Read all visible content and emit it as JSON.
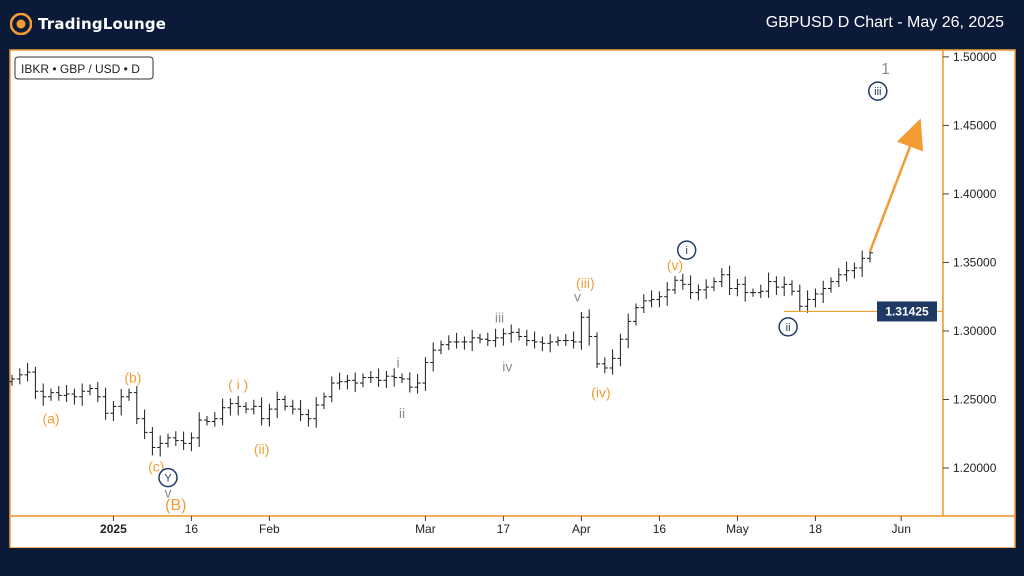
{
  "header": {
    "brand": "TradingLounge",
    "title": "GBPUSD D Chart - May 26, 2025"
  },
  "colors": {
    "background": "#0c1a3a",
    "frame": "#f39c34",
    "orange": "#f39c34",
    "navy": "#1f3864",
    "gray": "#8c8c8c",
    "bars": "#1a1a1a"
  },
  "chart_data": {
    "type": "ohlc",
    "symbol_label": "IBKR • GBP / USD • D",
    "ylim": [
      1.165,
      1.505
    ],
    "y_ticks": [
      1.2,
      1.25,
      1.3,
      1.35,
      1.4,
      1.45,
      1.5
    ],
    "y_tick_labels": [
      "1.20000",
      "1.25000",
      "1.30000",
      "1.35000",
      "1.40000",
      "1.45000",
      "1.50000"
    ],
    "x_ticks": [
      {
        "label": "2025",
        "index": 13,
        "bold": true
      },
      {
        "label": "16",
        "index": 23
      },
      {
        "label": "Feb",
        "index": 33
      },
      {
        "label": "Mar",
        "index": 53
      },
      {
        "label": "17",
        "index": 63
      },
      {
        "label": "Apr",
        "index": 73
      },
      {
        "label": "16",
        "index": 83
      },
      {
        "label": "May",
        "index": 93
      },
      {
        "label": "18",
        "index": 103
      },
      {
        "label": "Jun",
        "index": 114
      }
    ],
    "closes": [
      1.265,
      1.268,
      1.27,
      1.256,
      1.252,
      1.255,
      1.253,
      1.254,
      1.252,
      1.256,
      1.258,
      1.252,
      1.24,
      1.245,
      1.252,
      1.255,
      1.236,
      1.226,
      1.215,
      1.218,
      1.222,
      1.22,
      1.218,
      1.222,
      1.235,
      1.234,
      1.236,
      1.244,
      1.247,
      1.245,
      1.243,
      1.245,
      1.236,
      1.243,
      1.25,
      1.245,
      1.243,
      1.239,
      1.236,
      1.246,
      1.252,
      1.262,
      1.263,
      1.264,
      1.262,
      1.266,
      1.266,
      1.264,
      1.267,
      1.266,
      1.265,
      1.259,
      1.262,
      1.277,
      1.286,
      1.29,
      1.292,
      1.292,
      1.292,
      1.295,
      1.294,
      1.293,
      1.295,
      1.298,
      1.299,
      1.296,
      1.293,
      1.292,
      1.291,
      1.292,
      1.293,
      1.293,
      1.292,
      1.31,
      1.296,
      1.276,
      1.273,
      1.28,
      1.294,
      1.307,
      1.317,
      1.322,
      1.323,
      1.325,
      1.33,
      1.337,
      1.334,
      1.328,
      1.33,
      1.332,
      1.336,
      1.341,
      1.331,
      1.334,
      1.328,
      1.328,
      1.329,
      1.336,
      1.332,
      1.334,
      1.329,
      1.318,
      1.323,
      1.327,
      1.331,
      1.336,
      1.341,
      1.344,
      1.346,
      1.353,
      1.357
    ],
    "current_price": 1.31425,
    "current_price_label": "1.31425",
    "projection": {
      "from_index": 110,
      "from_value": 1.358,
      "to_index": 116.5,
      "to_value": 1.455
    },
    "wave_labels": [
      {
        "text": "(a)",
        "index": 5,
        "value": 1.236,
        "color": "orange"
      },
      {
        "text": "(b)",
        "index": 15.5,
        "value": 1.266,
        "color": "orange"
      },
      {
        "text": "(c)",
        "index": 18.5,
        "value": 1.201,
        "color": "orange"
      },
      {
        "text": "Y",
        "index": 20,
        "value": 1.193,
        "color": "navy",
        "circled": true
      },
      {
        "text": "v",
        "index": 20,
        "value": 1.182,
        "color": "gray"
      },
      {
        "text": "(B)",
        "index": 21,
        "value": 1.173,
        "color": "orange",
        "size": 16
      },
      {
        "text": "( i )",
        "index": 29,
        "value": 1.261,
        "color": "orange"
      },
      {
        "text": "(ii)",
        "index": 32,
        "value": 1.214,
        "color": "orange"
      },
      {
        "text": "i",
        "index": 49.5,
        "value": 1.277,
        "color": "gray"
      },
      {
        "text": "ii",
        "index": 50,
        "value": 1.24,
        "color": "gray"
      },
      {
        "text": "iii",
        "index": 62.5,
        "value": 1.31,
        "color": "gray"
      },
      {
        "text": "iv",
        "index": 63.5,
        "value": 1.274,
        "color": "gray"
      },
      {
        "text": "v",
        "index": 72.5,
        "value": 1.325,
        "color": "gray"
      },
      {
        "text": "(iii)",
        "index": 73.5,
        "value": 1.335,
        "color": "orange"
      },
      {
        "text": "(iv)",
        "index": 75.5,
        "value": 1.255,
        "color": "orange"
      },
      {
        "text": "(v)",
        "index": 85,
        "value": 1.348,
        "color": "orange"
      },
      {
        "text": "i",
        "index": 86.5,
        "value": 1.359,
        "color": "navy",
        "circled": true
      },
      {
        "text": "ii",
        "index": 99.5,
        "value": 1.303,
        "color": "navy",
        "circled": true
      },
      {
        "text": "iii",
        "index": 111,
        "value": 1.475,
        "color": "navy",
        "circled": true
      },
      {
        "text": "1",
        "index": 112,
        "value": 1.491,
        "color": "gray",
        "size": 16
      }
    ]
  }
}
